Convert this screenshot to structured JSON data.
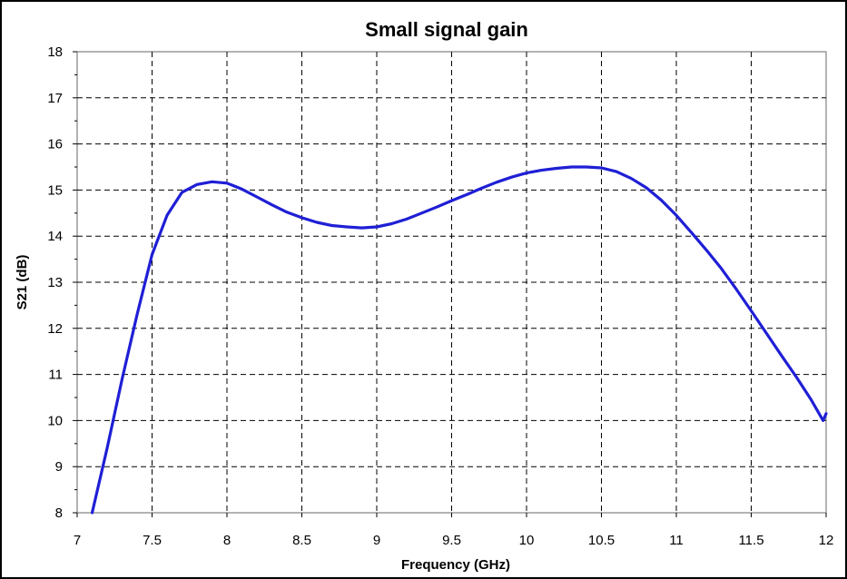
{
  "chart_data": {
    "type": "line",
    "title": "Small signal gain",
    "xlabel": "Frequency (GHz)",
    "ylabel": "S21 (dB)",
    "xlim": [
      7,
      12
    ],
    "ylim": [
      8,
      18
    ],
    "xticks": [
      "7",
      "7.5",
      "8",
      "8.5",
      "9",
      "9.5",
      "10",
      "10.5",
      "11",
      "11.5",
      "12"
    ],
    "yticks": [
      "8",
      "9",
      "10",
      "11",
      "12",
      "13",
      "14",
      "15",
      "16",
      "17",
      "18"
    ],
    "grid": true,
    "legend": "none",
    "series": [
      {
        "color": "#1f1fd6",
        "x": [
          7.1,
          7.2,
          7.3,
          7.4,
          7.5,
          7.6,
          7.7,
          7.8,
          7.9,
          8.0,
          8.1,
          8.2,
          8.3,
          8.4,
          8.5,
          8.6,
          8.7,
          8.8,
          8.9,
          9.0,
          9.1,
          9.2,
          9.3,
          9.4,
          9.5,
          9.6,
          9.7,
          9.8,
          9.9,
          10.0,
          10.1,
          10.2,
          10.3,
          10.4,
          10.5,
          10.6,
          10.7,
          10.8,
          10.9,
          11.0,
          11.1,
          11.2,
          11.3,
          11.4,
          11.5,
          11.6,
          11.7,
          11.8,
          11.9,
          11.98,
          12.0
        ],
        "y": [
          8.0,
          9.4,
          10.9,
          12.3,
          13.6,
          14.45,
          14.95,
          15.12,
          15.18,
          15.15,
          15.02,
          14.85,
          14.68,
          14.52,
          14.4,
          14.3,
          14.23,
          14.2,
          14.18,
          14.2,
          14.27,
          14.37,
          14.5,
          14.63,
          14.77,
          14.9,
          15.04,
          15.17,
          15.28,
          15.37,
          15.43,
          15.47,
          15.5,
          15.5,
          15.48,
          15.4,
          15.25,
          15.05,
          14.78,
          14.45,
          14.08,
          13.7,
          13.3,
          12.85,
          12.38,
          11.9,
          11.42,
          10.95,
          10.45,
          10.0,
          10.15
        ]
      }
    ]
  }
}
